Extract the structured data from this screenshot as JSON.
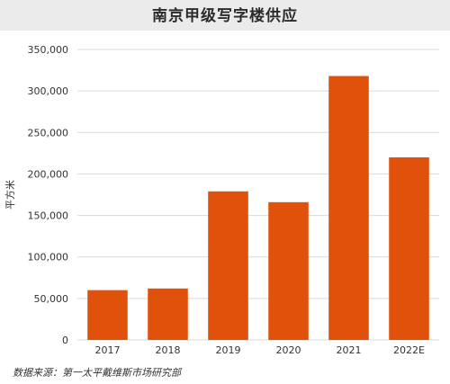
{
  "chart_data": {
    "type": "bar",
    "title": "南京甲级写字楼供应",
    "ylabel": "平方米",
    "xlabel": "",
    "categories": [
      "2017",
      "2018",
      "2019",
      "2020",
      "2021",
      "2022E"
    ],
    "values": [
      60000,
      62000,
      179000,
      166000,
      318000,
      220000
    ],
    "ylim": [
      0,
      350000
    ],
    "yticks": [
      0,
      50000,
      100000,
      150000,
      200000,
      250000,
      300000,
      350000
    ],
    "ytick_labels": [
      "0",
      "50,000",
      "100,000",
      "150,000",
      "200,000",
      "250,000",
      "300,000",
      "350,000"
    ],
    "bar_color": "#e0520c",
    "grid": true,
    "legend": "none"
  },
  "source": "数据来源：第一太平戴维斯市场研究部"
}
